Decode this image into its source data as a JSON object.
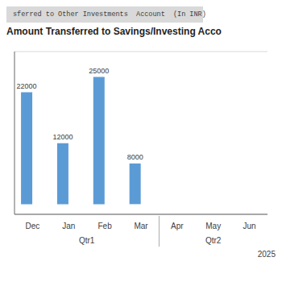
{
  "chart_data": {
    "type": "bar",
    "title": "Amount Transferred to Savings/Investing Acco",
    "subtitle": "sferred to Other Investments  Account  (In INR)",
    "categories": [
      "Dec",
      "Jan",
      "Feb",
      "Mar",
      "Apr",
      "May",
      "Jun"
    ],
    "series": [
      {
        "color": "#5B9BD5",
        "values": [
          22000,
          12000,
          25000,
          8000,
          0,
          0,
          0
        ]
      },
      {
        "color": "#5B9BD5",
        "values": [
          0,
          0,
          0,
          0,
          0,
          0,
          0
        ]
      }
    ],
    "ylim": [
      -2000,
      30000
    ],
    "yticks": [
      0,
      5000,
      10000,
      15000,
      20000,
      25000
    ],
    "grid": true,
    "data_labels": true,
    "tick_labels": "x",
    "annotations": [
      {
        "text": "Qtr1",
        "categories": [
          "Dec",
          "Jan",
          "Feb",
          "Mar"
        ]
      },
      {
        "text": "Qtr2",
        "categories": [
          "Apr",
          "May",
          "Jun"
        ]
      },
      {
        "text": "2025"
      }
    ]
  }
}
